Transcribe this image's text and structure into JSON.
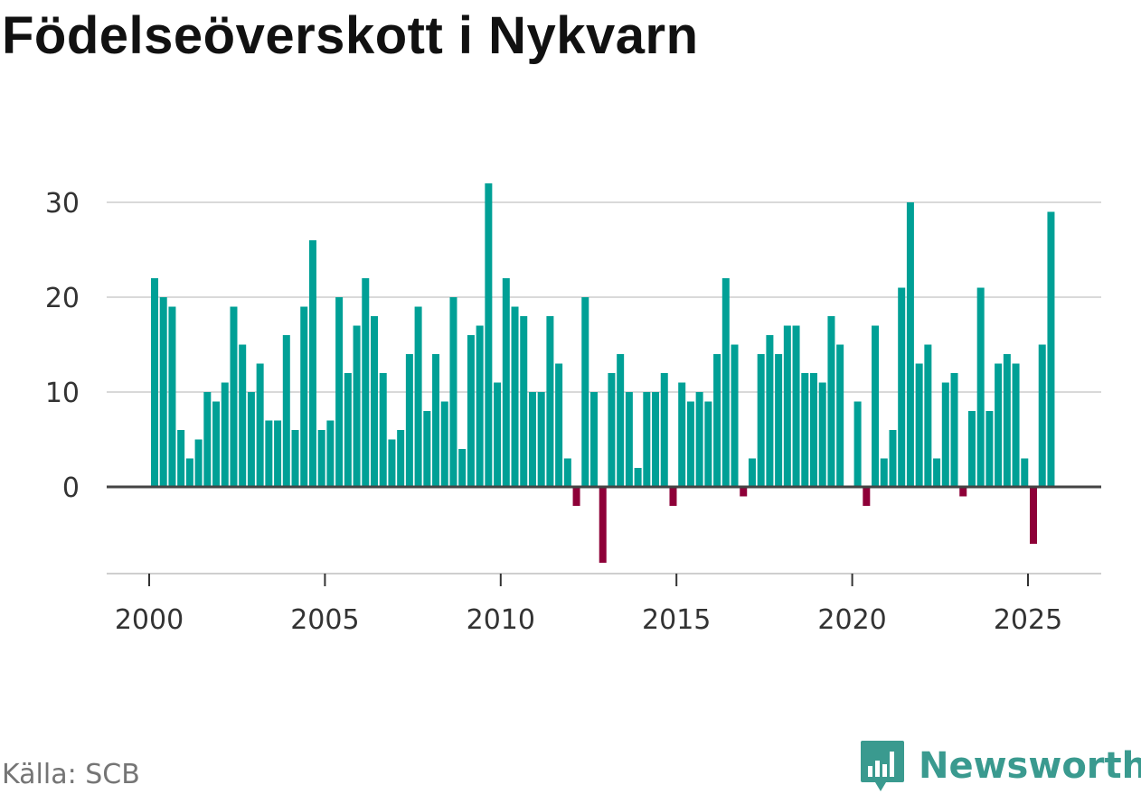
{
  "title": "Födelseöverskott i Nykvarn",
  "source": "Källa: SCB",
  "brand": {
    "name": "Newsworthy",
    "icon": "newsworthy-logo-icon",
    "color": "#3a9a8f"
  },
  "colors": {
    "positive": "#00a096",
    "negative": "#8e0038",
    "grid": "#d9d9d9",
    "axis": "#444444"
  },
  "chart_data": {
    "type": "bar",
    "frequency": "quarterly",
    "x_ticks": [
      "2000",
      "2005",
      "2010",
      "2015",
      "2020",
      "2025"
    ],
    "y_ticks": [
      "0",
      "10",
      "20",
      "30"
    ],
    "ylim": [
      -8,
      32
    ],
    "grid": true,
    "x": [
      "2000 Q1",
      "2000 Q2",
      "2000 Q3",
      "2000 Q4",
      "2001 Q1",
      "2001 Q2",
      "2001 Q3",
      "2001 Q4",
      "2002 Q1",
      "2002 Q2",
      "2002 Q3",
      "2002 Q4",
      "2003 Q1",
      "2003 Q2",
      "2003 Q3",
      "2003 Q4",
      "2004 Q1",
      "2004 Q2",
      "2004 Q3",
      "2004 Q4",
      "2005 Q1",
      "2005 Q2",
      "2005 Q3",
      "2005 Q4",
      "2006 Q1",
      "2006 Q2",
      "2006 Q3",
      "2006 Q4",
      "2007 Q1",
      "2007 Q2",
      "2007 Q3",
      "2007 Q4",
      "2008 Q1",
      "2008 Q2",
      "2008 Q3",
      "2008 Q4",
      "2009 Q1",
      "2009 Q2",
      "2009 Q3",
      "2009 Q4",
      "2010 Q1",
      "2010 Q2",
      "2010 Q3",
      "2010 Q4",
      "2011 Q1",
      "2011 Q2",
      "2011 Q3",
      "2011 Q4",
      "2012 Q1",
      "2012 Q2",
      "2012 Q3",
      "2012 Q4",
      "2013 Q1",
      "2013 Q2",
      "2013 Q3",
      "2013 Q4",
      "2014 Q1",
      "2014 Q2",
      "2014 Q3",
      "2014 Q4",
      "2015 Q1",
      "2015 Q2",
      "2015 Q3",
      "2015 Q4",
      "2016 Q1",
      "2016 Q2",
      "2016 Q3",
      "2016 Q4",
      "2017 Q1",
      "2017 Q2",
      "2017 Q3",
      "2017 Q4",
      "2018 Q1",
      "2018 Q2",
      "2018 Q3",
      "2018 Q4",
      "2019 Q1",
      "2019 Q2",
      "2019 Q3",
      "2019 Q4",
      "2020 Q1",
      "2020 Q2",
      "2020 Q3",
      "2020 Q4",
      "2021 Q1",
      "2021 Q2",
      "2021 Q3",
      "2021 Q4",
      "2022 Q1",
      "2022 Q2",
      "2022 Q3",
      "2022 Q4",
      "2023 Q1",
      "2023 Q2",
      "2023 Q3",
      "2023 Q4",
      "2024 Q1",
      "2024 Q2",
      "2024 Q3",
      "2024 Q4",
      "2025 Q1",
      "2025 Q2",
      "2025 Q3"
    ],
    "values": [
      22,
      20,
      19,
      6,
      3,
      5,
      10,
      9,
      11,
      19,
      15,
      10,
      13,
      7,
      7,
      16,
      6,
      19,
      26,
      6,
      7,
      20,
      12,
      17,
      22,
      18,
      12,
      5,
      6,
      14,
      19,
      8,
      14,
      9,
      20,
      4,
      16,
      17,
      32,
      11,
      22,
      19,
      18,
      10,
      10,
      18,
      13,
      3,
      -2,
      20,
      10,
      -8,
      12,
      14,
      10,
      2,
      10,
      10,
      12,
      -2,
      11,
      9,
      10,
      9,
      14,
      22,
      15,
      -1,
      3,
      14,
      16,
      14,
      17,
      17,
      12,
      12,
      11,
      18,
      15,
      0,
      9,
      -2,
      17,
      3,
      6,
      21,
      30,
      13,
      15,
      3,
      11,
      12,
      -1,
      8,
      21,
      8,
      13,
      14,
      13,
      3,
      -6,
      15,
      29
    ]
  }
}
